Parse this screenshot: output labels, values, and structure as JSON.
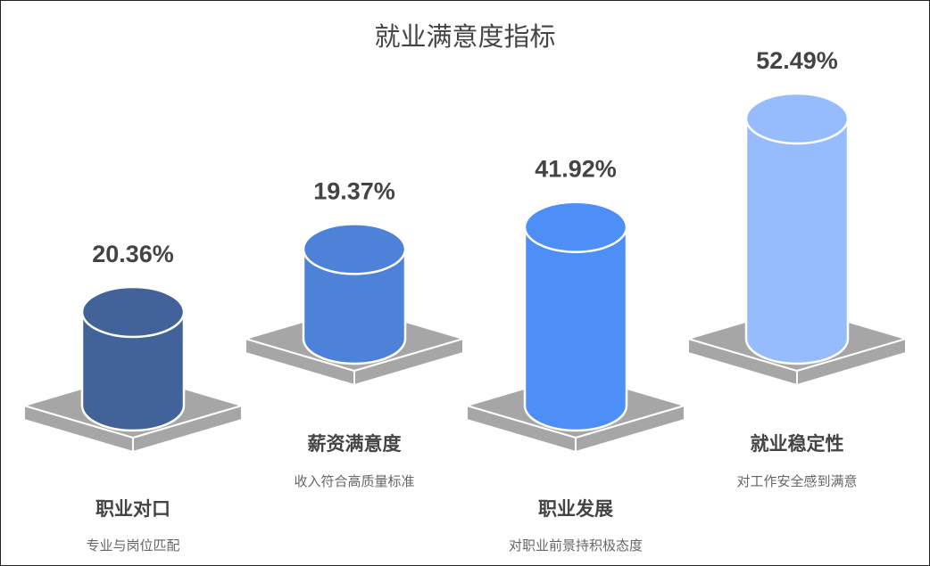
{
  "chart_data": {
    "type": "bar",
    "style": "3d-cylinder",
    "title": "就业满意度指标",
    "categories": [
      "职业对口",
      "薪资满意度",
      "职业发展",
      "就业稳定性"
    ],
    "descriptions": [
      "专业与岗位匹配",
      "收入符合高质量标准",
      "对职业前景持积极态度",
      "对工作安全感到满意"
    ],
    "values": [
      20.36,
      19.37,
      41.92,
      52.49
    ],
    "value_labels": [
      "20.36%",
      "19.37%",
      "41.92%",
      "52.49%"
    ],
    "colors": [
      "#42639a",
      "#4e82d8",
      "#4e8ef7",
      "#96bcfd"
    ],
    "platform_color": "#a6a6a6"
  }
}
